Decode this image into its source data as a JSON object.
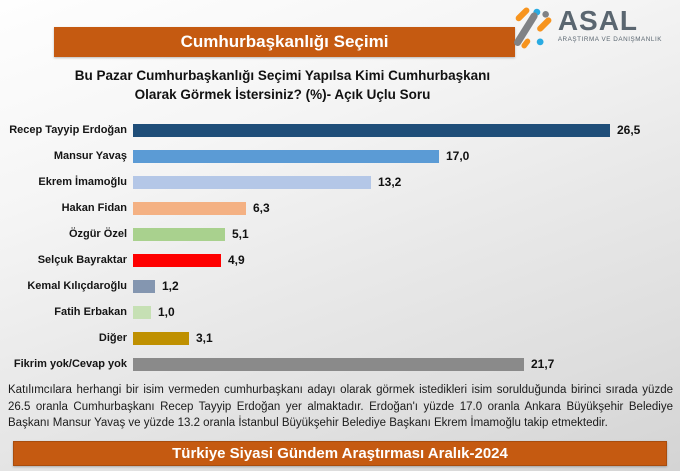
{
  "header": {
    "banner_title": "Cumhurbaşkanlığı Seçimi",
    "logo": {
      "name": "ASAL",
      "tagline": "ARAŞTIRMA VE DANIŞMANLIK",
      "colors": {
        "gray": "#808285",
        "orange": "#F7941E",
        "blue": "#29ABE2",
        "text": "#5A6670"
      }
    }
  },
  "question": {
    "line1": "Bu Pazar Cumhurbaşkanlığı Seçimi Yapılsa Kimi Cumhurbaşkanı",
    "line2": "Olarak Görmek İstersiniz? (%)- Açık Uçlu Soru"
  },
  "chart_data": {
    "type": "bar",
    "orientation": "horizontal",
    "title": "Bu Pazar Cumhurbaşkanlığı Seçimi Yapılsa Kimi Cumhurbaşkanı Olarak Görmek İstersiniz? (%)- Açık Uçlu Soru",
    "categories": [
      "Recep Tayyip Erdoğan",
      "Mansur Yavaş",
      "Ekrem İmamoğlu",
      "Hakan Fidan",
      "Özgür Özel",
      "Selçuk Bayraktar",
      "Kemal Kılıçdaroğlu",
      "Fatih Erbakan",
      "Diğer",
      "Fikrim yok/Cevap yok"
    ],
    "values": [
      26.5,
      17.0,
      13.2,
      6.3,
      5.1,
      4.9,
      1.2,
      1.0,
      3.1,
      21.7
    ],
    "value_labels": [
      "26,5",
      "17,0",
      "13,2",
      "6,3",
      "5,1",
      "4,9",
      "1,2",
      "1,0",
      "3,1",
      "21,7"
    ],
    "bar_colors": [
      "#1F4E79",
      "#5B9BD5",
      "#B4C7E7",
      "#F4B183",
      "#A9D18E",
      "#FE0000",
      "#8496B0",
      "#C6E0B4",
      "#BF9000",
      "#8A8A8A"
    ],
    "xlim": [
      0,
      26.5
    ],
    "unit": "%",
    "grid": false,
    "legend": "none",
    "data_labels": "outside-end"
  },
  "footer": {
    "analysis": "Katılımcılara herhangi bir isim vermeden cumhurbaşkanı adayı olarak görmek istedikleri isim sorulduğunda birinci sırada yüzde 26.5 oranla Cumhurbaşkanı Recep Tayyip Erdoğan yer almaktadır. Erdoğan'ı yüzde 17.0 oranla Ankara Büyükşehir Belediye Başkanı Mansur Yavaş ve yüzde 13.2 oranla İstanbul Büyükşehir Belediye Başkanı Ekrem İmamoğlu takip etmektedir.",
    "banner_title": "Türkiye Siyasi Gündem Araştırması Aralık-2024"
  },
  "theme": {
    "banner_color": "#C55A11",
    "banner_text_color": "#FFFFFF"
  }
}
